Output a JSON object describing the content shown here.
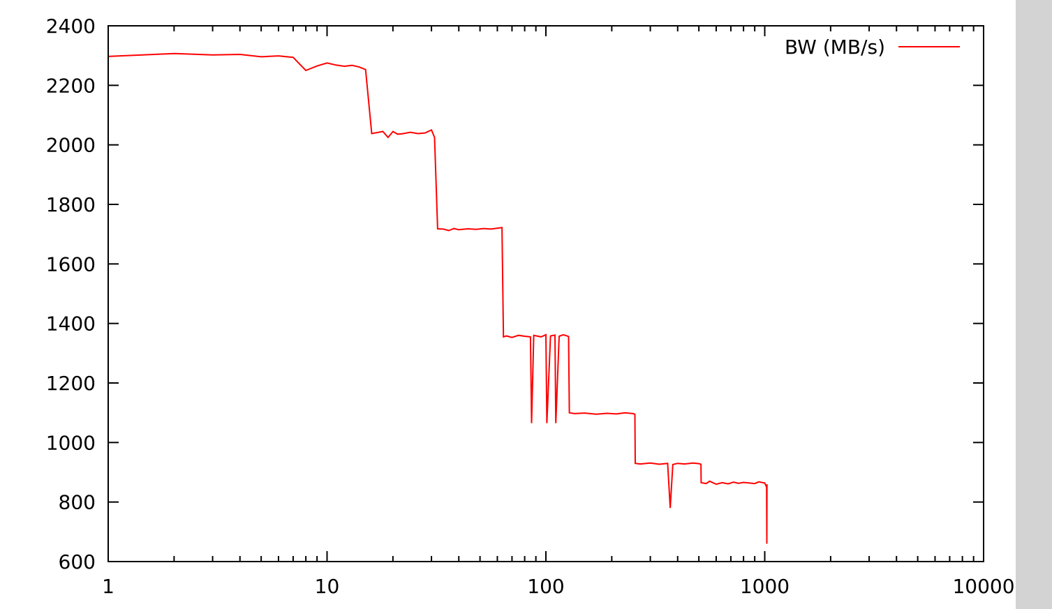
{
  "chart_data": {
    "type": "line",
    "x_scale": "log",
    "xlim": [
      1,
      10000
    ],
    "ylim": [
      600,
      2400
    ],
    "x_ticks": [
      {
        "value": 1,
        "label": "1"
      },
      {
        "value": 10,
        "label": "10"
      },
      {
        "value": 100,
        "label": "100"
      },
      {
        "value": 1000,
        "label": "1000"
      },
      {
        "value": 10000,
        "label": "10000"
      }
    ],
    "y_ticks": [
      {
        "value": 600,
        "label": "600"
      },
      {
        "value": 800,
        "label": "800"
      },
      {
        "value": 1000,
        "label": "1000"
      },
      {
        "value": 1200,
        "label": "1200"
      },
      {
        "value": 1400,
        "label": "1400"
      },
      {
        "value": 1600,
        "label": "1600"
      },
      {
        "value": 1800,
        "label": "1800"
      },
      {
        "value": 2000,
        "label": "2000"
      },
      {
        "value": 2200,
        "label": "2200"
      },
      {
        "value": 2400,
        "label": "2400"
      }
    ],
    "grid": false,
    "legend_position": "top-right",
    "series": [
      {
        "name": "BW (MB/s)",
        "color": "#ff0000",
        "x": [
          1,
          2,
          3,
          4,
          5,
          6,
          7,
          8,
          9,
          10,
          11,
          12,
          13,
          14,
          15,
          16,
          18,
          19,
          20,
          21,
          22,
          24,
          26,
          28,
          30,
          31,
          32,
          34,
          36,
          38,
          40,
          44,
          48,
          52,
          56,
          60,
          63,
          64,
          66,
          70,
          75,
          80,
          85,
          86,
          88,
          95,
          100,
          101,
          105,
          110,
          111,
          115,
          120,
          125,
          127,
          128,
          135,
          150,
          170,
          190,
          210,
          230,
          250,
          255,
          256,
          270,
          300,
          330,
          360,
          370,
          380,
          400,
          430,
          470,
          500,
          511,
          512,
          540,
          560,
          600,
          640,
          680,
          720,
          760,
          800,
          850,
          900,
          940,
          980,
          1000,
          1020,
          1022,
          1024
        ],
        "y": [
          2297,
          2307,
          2302,
          2304,
          2296,
          2299,
          2294,
          2250,
          2265,
          2275,
          2268,
          2264,
          2267,
          2262,
          2253,
          2038,
          2045,
          2025,
          2045,
          2036,
          2037,
          2042,
          2038,
          2040,
          2050,
          2025,
          1718,
          1717,
          1712,
          1719,
          1715,
          1718,
          1716,
          1719,
          1717,
          1720,
          1722,
          1355,
          1358,
          1353,
          1360,
          1357,
          1355,
          1065,
          1360,
          1355,
          1362,
          1065,
          1358,
          1361,
          1065,
          1357,
          1362,
          1358,
          1356,
          1100,
          1097,
          1099,
          1095,
          1098,
          1096,
          1100,
          1097,
          1095,
          930,
          928,
          931,
          927,
          930,
          780,
          926,
          930,
          928,
          931,
          929,
          927,
          865,
          862,
          870,
          860,
          865,
          861,
          867,
          863,
          866,
          864,
          862,
          868,
          865,
          864,
          850,
          660,
          860
        ]
      }
    ]
  }
}
